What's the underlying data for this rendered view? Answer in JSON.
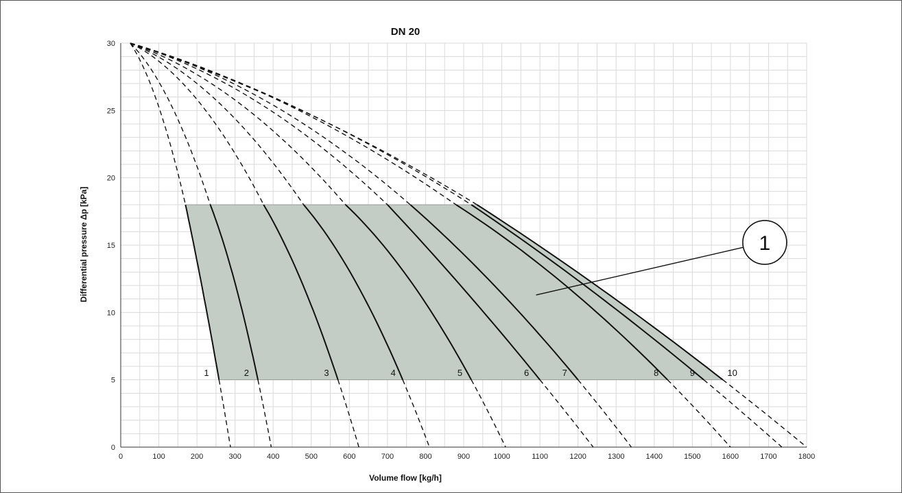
{
  "chart_data": {
    "type": "line",
    "title": "DN 20",
    "xlabel": "Volume flow [kg/h]",
    "ylabel": "Differential pressure Δp [kPa]",
    "xlim": [
      0,
      1800
    ],
    "ylim": [
      0,
      30
    ],
    "x_ticks": [
      0,
      100,
      200,
      300,
      400,
      500,
      600,
      700,
      800,
      900,
      1000,
      1100,
      1200,
      1300,
      1400,
      1500,
      1600,
      1700,
      1800
    ],
    "y_ticks": [
      0,
      5,
      10,
      15,
      20,
      25,
      30
    ],
    "grid": true,
    "origin_point": [
      25,
      30
    ],
    "series": [
      {
        "name": "1",
        "points": [
          [
            25,
            30
          ],
          [
            170,
            18
          ],
          [
            258,
            5
          ],
          [
            288,
            0
          ]
        ]
      },
      {
        "name": "2",
        "points": [
          [
            25,
            30
          ],
          [
            235,
            18
          ],
          [
            360,
            5
          ],
          [
            395,
            0
          ]
        ]
      },
      {
        "name": "3",
        "points": [
          [
            25,
            30
          ],
          [
            375,
            18
          ],
          [
            570,
            5
          ],
          [
            625,
            0
          ]
        ]
      },
      {
        "name": "4",
        "points": [
          [
            25,
            30
          ],
          [
            480,
            18
          ],
          [
            740,
            5
          ],
          [
            810,
            0
          ]
        ]
      },
      {
        "name": "5",
        "points": [
          [
            25,
            30
          ],
          [
            590,
            18
          ],
          [
            920,
            5
          ],
          [
            1010,
            0
          ]
        ]
      },
      {
        "name": "6",
        "points": [
          [
            25,
            30
          ],
          [
            700,
            18
          ],
          [
            1100,
            5
          ],
          [
            1240,
            0
          ]
        ]
      },
      {
        "name": "7",
        "points": [
          [
            25,
            30
          ],
          [
            760,
            18
          ],
          [
            1200,
            5
          ],
          [
            1340,
            0
          ]
        ]
      },
      {
        "name": "8",
        "points": [
          [
            25,
            30
          ],
          [
            880,
            18
          ],
          [
            1435,
            5
          ],
          [
            1600,
            0
          ]
        ]
      },
      {
        "name": "9",
        "points": [
          [
            25,
            30
          ],
          [
            920,
            18
          ],
          [
            1530,
            5
          ],
          [
            1735,
            0
          ]
        ]
      },
      {
        "name": "10",
        "points": [
          [
            25,
            30
          ],
          [
            935,
            18
          ],
          [
            1580,
            5
          ],
          [
            1800,
            0
          ]
        ]
      }
    ],
    "curve_label_positions": [
      {
        "name": "1",
        "x": 225,
        "y": 5.3
      },
      {
        "name": "2",
        "x": 330,
        "y": 5.3
      },
      {
        "name": "3",
        "x": 540,
        "y": 5.3
      },
      {
        "name": "4",
        "x": 715,
        "y": 5.3
      },
      {
        "name": "5",
        "x": 890,
        "y": 5.3
      },
      {
        "name": "6",
        "x": 1065,
        "y": 5.3
      },
      {
        "name": "7",
        "x": 1165,
        "y": 5.3
      },
      {
        "name": "8",
        "x": 1405,
        "y": 5.3
      },
      {
        "name": "9",
        "x": 1500,
        "y": 5.3
      },
      {
        "name": "10",
        "x": 1605,
        "y": 5.3
      }
    ],
    "operating_range": {
      "label": "1",
      "y_min": 5,
      "y_max": 18,
      "fill": "#c3ccc5"
    },
    "callout": {
      "label": "1",
      "circle_center": [
        1690,
        15.2
      ],
      "line_to": [
        1090,
        11.3
      ]
    },
    "colors": {
      "curve": "#111111",
      "grid": "#d9d9d9",
      "axis": "#333333"
    }
  }
}
